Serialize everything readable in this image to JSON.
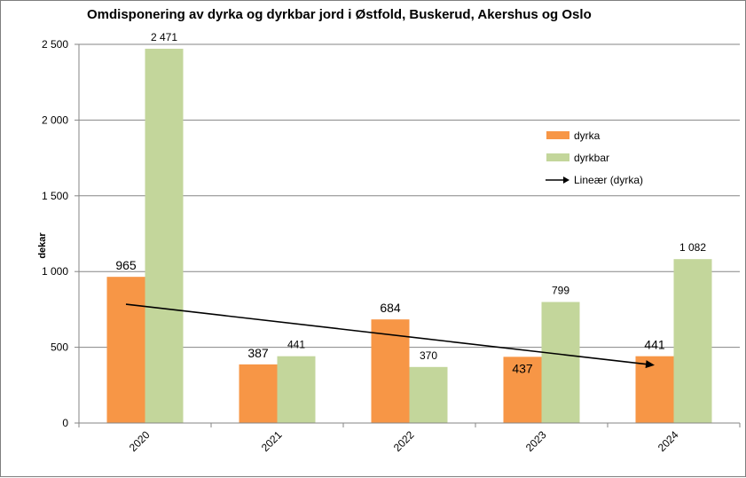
{
  "chart_data": {
    "type": "bar",
    "title": "Omdisponering av dyrka og dyrkbar jord i Østfold, Buskerud, Akershus og Oslo",
    "xlabel": "",
    "ylabel": "dekar",
    "ylim": [
      0,
      2500
    ],
    "yticks": [
      0,
      500,
      1000,
      1500,
      2000,
      2500
    ],
    "ytick_labels": [
      "0",
      "500",
      "1 000",
      "1 500",
      "2 000",
      "2 500"
    ],
    "grid": true,
    "legend_position": "right",
    "categories": [
      "2020",
      "2021",
      "2022",
      "2023",
      "2024"
    ],
    "series": [
      {
        "name": "dyrka",
        "color": "#f79646",
        "values": [
          965,
          387,
          684,
          437,
          441
        ],
        "labels": [
          "965",
          "387",
          "684",
          "437",
          "441"
        ]
      },
      {
        "name": "dyrkbar",
        "color": "#c3d69b",
        "values": [
          2471,
          441,
          370,
          799,
          1082
        ],
        "labels": [
          "2 471",
          "441",
          "370",
          "799",
          "1 082"
        ]
      }
    ],
    "trendline": {
      "name": "Lineær (dyrka)",
      "series": "dyrka",
      "type": "linear",
      "start_value": 784,
      "end_value": 382,
      "color": "#000000"
    }
  }
}
